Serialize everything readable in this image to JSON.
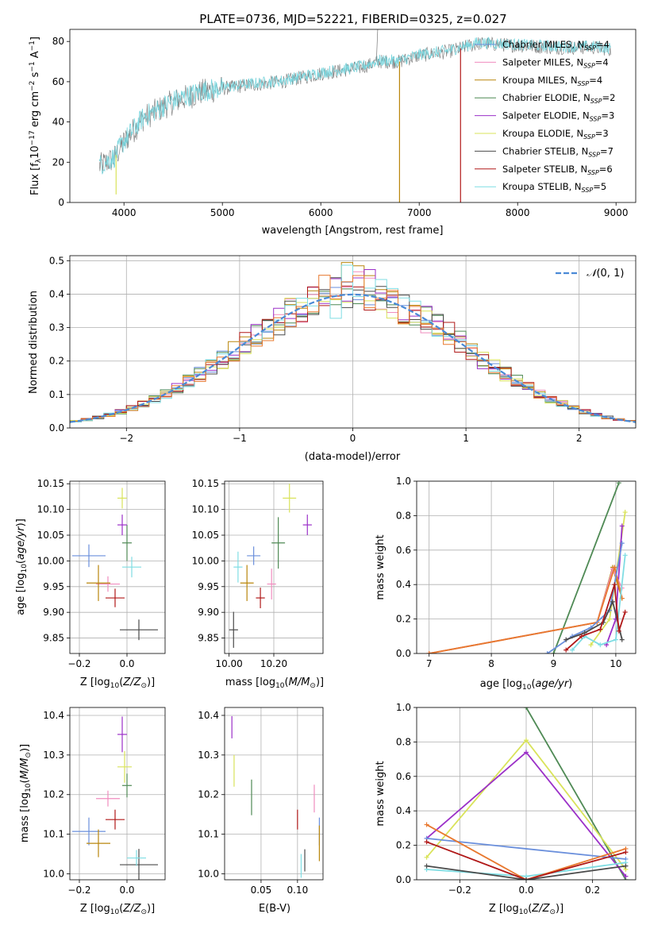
{
  "title": "PLATE=0736, MJD=52221, FIBERID=0325, z=0.027",
  "colors": {
    "Chabrier MILES": "#6a8fdc",
    "Salpeter MILES": "#f08cbe",
    "Kroupa MILES": "#b9860b",
    "Chabrier ELODIE": "#4f8a55",
    "Salpeter ELODIE": "#9b30c8",
    "Kroupa ELODIE": "#d9e35a",
    "Chabrier STELIB": "#4a4a4a",
    "Salpeter STELIB": "#b01818",
    "Kroupa STELIB": "#7fdde3",
    "orange": "#e8782e",
    "normal": "#4a8ad6",
    "spectrum_main": "#78d5dd",
    "spectrum_gray": "#777777"
  },
  "chart_data": [
    {
      "id": "spectrum",
      "type": "line",
      "xlabel": "wavelength [Angstrom, rest frame]",
      "ylabel_text": "Flux [f",
      "xlim": [
        3450,
        9200
      ],
      "ylim": [
        0,
        86
      ],
      "xticks": [
        4000,
        5000,
        6000,
        7000,
        8000,
        9000
      ],
      "yticks": [
        0,
        20,
        40,
        60,
        80
      ],
      "legend": [
        {
          "label": "Chabrier MILES, N",
          "n": "4"
        },
        {
          "label": "Salpeter MILES, N",
          "n": "4"
        },
        {
          "label": "Kroupa MILES, N",
          "n": "4"
        },
        {
          "label": "Chabrier ELODIE, N",
          "n": "2"
        },
        {
          "label": "Salpeter ELODIE, N",
          "n": "3"
        },
        {
          "label": "Kroupa ELODIE, N",
          "n": "3"
        },
        {
          "label": "Chabrier STELIB, N",
          "n": "7"
        },
        {
          "label": "Salpeter STELIB, N",
          "n": "6"
        },
        {
          "label": "Kroupa STELIB, N",
          "n": "5"
        }
      ],
      "continuum": [
        [
          3750,
          18
        ],
        [
          3900,
          22
        ],
        [
          4000,
          30
        ],
        [
          4200,
          42
        ],
        [
          4500,
          50
        ],
        [
          4800,
          55
        ],
        [
          5200,
          58
        ],
        [
          5600,
          60
        ],
        [
          6000,
          64
        ],
        [
          6400,
          67
        ],
        [
          6600,
          70
        ],
        [
          6800,
          70
        ],
        [
          7000,
          73
        ],
        [
          7300,
          75
        ],
        [
          7600,
          79
        ],
        [
          8000,
          78
        ],
        [
          8400,
          77
        ],
        [
          8800,
          77
        ],
        [
          8950,
          76
        ]
      ],
      "drops": [
        {
          "name": "Kroupa ELODIE",
          "x": 3920,
          "ybot": 4
        },
        {
          "name": "Kroupa MILES",
          "x": 6800,
          "ybot": 0
        },
        {
          "name": "Salpeter STELIB",
          "x": 7420,
          "ybot": 0
        }
      ]
    },
    {
      "id": "residuals",
      "type": "histogram",
      "xlabel": "(data-model)/error",
      "ylabel": "Normed distribution",
      "xlim": [
        -2.5,
        2.5
      ],
      "ylim": [
        0,
        0.515
      ],
      "xticks": [
        -2,
        -1,
        0,
        1,
        2
      ],
      "yticks": [
        0.0,
        0.1,
        0.2,
        0.3,
        0.4,
        0.5
      ],
      "legend_label": "(0, 1)",
      "bin_width": 0.1
    },
    {
      "id": "age_vs_Z",
      "type": "scatter",
      "xlabel": "Z [log",
      "ylabel": "age  [log",
      "xlim": [
        -0.24,
        0.16
      ],
      "ylim": [
        9.82,
        10.155
      ],
      "xticks": [
        -0.2,
        0.0
      ],
      "yticks": [
        9.85,
        9.9,
        9.95,
        10.0,
        10.05,
        10.1,
        10.15
      ],
      "points": [
        {
          "name": "Chabrier MILES",
          "x": -0.16,
          "y": 10.01,
          "xerr": 0.07,
          "yerr": 0.022
        },
        {
          "name": "Salpeter MILES",
          "x": -0.08,
          "y": 9.955,
          "xerr": 0.05,
          "yerr": 0.015
        },
        {
          "name": "Kroupa MILES",
          "x": -0.12,
          "y": 9.957,
          "xerr": 0.05,
          "yerr": 0.035
        },
        {
          "name": "Chabrier ELODIE",
          "x": 0.0,
          "y": 10.035,
          "xerr": 0.02,
          "yerr": 0.035
        },
        {
          "name": "Salpeter ELODIE",
          "x": -0.02,
          "y": 10.07,
          "xerr": 0.02,
          "yerr": 0.02
        },
        {
          "name": "Kroupa ELODIE",
          "x": -0.02,
          "y": 10.122,
          "xerr": 0.02,
          "yerr": 0.02
        },
        {
          "name": "Chabrier STELIB",
          "x": 0.05,
          "y": 9.866,
          "xerr": 0.08,
          "yerr": 0.02
        },
        {
          "name": "Salpeter STELIB",
          "x": -0.05,
          "y": 9.928,
          "xerr": 0.04,
          "yerr": 0.018
        },
        {
          "name": "Kroupa STELIB",
          "x": 0.02,
          "y": 9.988,
          "xerr": 0.04,
          "yerr": 0.02
        }
      ]
    },
    {
      "id": "age_vs_mass",
      "type": "scatter",
      "xlabel": "mass [log",
      "ylabel": "",
      "xlim": [
        9.98,
        10.42
      ],
      "ylim": [
        9.82,
        10.155
      ],
      "xticks": [
        10.0,
        10.2
      ],
      "yticks": [
        9.85,
        9.9,
        9.95,
        10.0,
        10.05,
        10.1,
        10.15
      ],
      "points": [
        {
          "name": "Chabrier MILES",
          "x": 10.11,
          "y": 10.01,
          "xerr": 0.03,
          "yerr": 0.018
        },
        {
          "name": "Salpeter MILES",
          "x": 10.19,
          "y": 9.955,
          "xerr": 0.02,
          "yerr": 0.03
        },
        {
          "name": "Kroupa MILES",
          "x": 10.08,
          "y": 9.957,
          "xerr": 0.03,
          "yerr": 0.035
        },
        {
          "name": "Chabrier ELODIE",
          "x": 10.22,
          "y": 10.035,
          "xerr": 0.03,
          "yerr": 0.05
        },
        {
          "name": "Salpeter ELODIE",
          "x": 10.35,
          "y": 10.07,
          "xerr": 0.02,
          "yerr": 0.02
        },
        {
          "name": "Kroupa ELODIE",
          "x": 10.27,
          "y": 10.122,
          "xerr": 0.03,
          "yerr": 0.028
        },
        {
          "name": "Chabrier STELIB",
          "x": 10.02,
          "y": 9.866,
          "xerr": 0.02,
          "yerr": 0.035
        },
        {
          "name": "Salpeter STELIB",
          "x": 10.14,
          "y": 9.928,
          "xerr": 0.02,
          "yerr": 0.02
        },
        {
          "name": "Kroupa STELIB",
          "x": 10.04,
          "y": 9.988,
          "xerr": 0.02,
          "yerr": 0.03
        }
      ]
    },
    {
      "id": "mass_weight_vs_age",
      "type": "line",
      "xlabel": "age  [log",
      "ylabel": "mass weight",
      "xlim": [
        6.8,
        10.32
      ],
      "ylim": [
        0,
        1.0
      ],
      "xticks": [
        7,
        8,
        9,
        10
      ],
      "yticks": [
        0.0,
        0.2,
        0.4,
        0.6,
        0.8,
        1.0
      ],
      "series": [
        {
          "name": "Chabrier ELODIE",
          "points": [
            [
              9.0,
              0.0
            ],
            [
              10.05,
              0.99
            ]
          ]
        },
        {
          "name": "Kroupa ELODIE",
          "points": [
            [
              9.6,
              0.05
            ],
            [
              9.9,
              0.2
            ],
            [
              10.15,
              0.82
            ]
          ]
        },
        {
          "name": "Salpeter ELODIE",
          "points": [
            [
              9.85,
              0.05
            ],
            [
              10.0,
              0.2
            ],
            [
              10.1,
              0.74
            ]
          ]
        },
        {
          "name": "Kroupa MILES",
          "points": [
            [
              7.0,
              0.0
            ],
            [
              9.7,
              0.18
            ],
            [
              9.95,
              0.5
            ],
            [
              10.1,
              0.32
            ]
          ]
        },
        {
          "name": "Salpeter MILES",
          "points": [
            [
              7.0,
              0.0
            ],
            [
              9.7,
              0.18
            ],
            [
              9.95,
              0.49
            ],
            [
              10.1,
              0.38
            ]
          ]
        },
        {
          "name": "orange",
          "points": [
            [
              7.0,
              0.0
            ],
            [
              9.7,
              0.18
            ],
            [
              9.98,
              0.5
            ],
            [
              10.1,
              0.32
            ]
          ]
        },
        {
          "name": "Chabrier MILES",
          "points": [
            [
              8.9,
              0.0
            ],
            [
              9.3,
              0.1
            ],
            [
              9.6,
              0.15
            ],
            [
              9.9,
              0.25
            ],
            [
              10.1,
              0.64
            ]
          ]
        },
        {
          "name": "Kroupa STELIB",
          "points": [
            [
              9.3,
              0.02
            ],
            [
              9.5,
              0.1
            ],
            [
              9.75,
              0.05
            ],
            [
              10.0,
              0.08
            ],
            [
              10.15,
              0.57
            ]
          ]
        },
        {
          "name": "Chabrier STELIB",
          "points": [
            [
              9.2,
              0.08
            ],
            [
              9.5,
              0.12
            ],
            [
              9.8,
              0.18
            ],
            [
              9.95,
              0.3
            ],
            [
              10.1,
              0.08
            ]
          ]
        },
        {
          "name": "Salpeter STELIB",
          "points": [
            [
              9.2,
              0.02
            ],
            [
              9.45,
              0.1
            ],
            [
              9.75,
              0.14
            ],
            [
              9.98,
              0.4
            ],
            [
              10.05,
              0.13
            ],
            [
              10.15,
              0.24
            ]
          ]
        }
      ]
    },
    {
      "id": "mass_vs_Z",
      "type": "scatter",
      "xlabel": "Z [log",
      "ylabel": "mass [log",
      "xlim": [
        -0.24,
        0.16
      ],
      "ylim": [
        9.985,
        10.42
      ],
      "xticks": [
        -0.2,
        0.0
      ],
      "yticks": [
        10.0,
        10.1,
        10.2,
        10.3,
        10.4
      ],
      "points": [
        {
          "name": "Chabrier MILES",
          "x": -0.16,
          "y": 10.107,
          "xerr": 0.07,
          "yerr": 0.035
        },
        {
          "name": "Salpeter MILES",
          "x": -0.08,
          "y": 10.19,
          "xerr": 0.05,
          "yerr": 0.02
        },
        {
          "name": "Kroupa MILES",
          "x": -0.12,
          "y": 10.077,
          "xerr": 0.05,
          "yerr": 0.035
        },
        {
          "name": "Chabrier ELODIE",
          "x": 0.0,
          "y": 10.223,
          "xerr": 0.02,
          "yerr": 0.03
        },
        {
          "name": "Salpeter ELODIE",
          "x": -0.02,
          "y": 10.352,
          "xerr": 0.02,
          "yerr": 0.045
        },
        {
          "name": "Kroupa ELODIE",
          "x": -0.01,
          "y": 10.27,
          "xerr": 0.03,
          "yerr": 0.04
        },
        {
          "name": "Chabrier STELIB",
          "x": 0.05,
          "y": 10.023,
          "xerr": 0.08,
          "yerr": 0.04
        },
        {
          "name": "Salpeter STELIB",
          "x": -0.05,
          "y": 10.137,
          "xerr": 0.04,
          "yerr": 0.025
        },
        {
          "name": "Kroupa STELIB",
          "x": 0.04,
          "y": 10.04,
          "xerr": 0.04,
          "yerr": 0.02
        }
      ]
    },
    {
      "id": "mass_vs_EBV",
      "type": "scatter",
      "xlabel": "E(B-V)",
      "ylabel": "",
      "xlim": [
        0.0,
        0.135
      ],
      "ylim": [
        9.985,
        10.42
      ],
      "xticks": [
        0.05,
        0.1
      ],
      "yticks": [
        10.0,
        10.1,
        10.2,
        10.3,
        10.4
      ],
      "points": [
        {
          "name": "Chabrier MILES",
          "x": 0.13,
          "y": 10.107,
          "xerr": 0,
          "yerr": 0.035
        },
        {
          "name": "Salpeter MILES",
          "x": 0.123,
          "y": 10.19,
          "xerr": 0,
          "yerr": 0.035
        },
        {
          "name": "Kroupa MILES",
          "x": 0.13,
          "y": 10.077,
          "xerr": 0,
          "yerr": 0.045
        },
        {
          "name": "Chabrier ELODIE",
          "x": 0.037,
          "y": 10.193,
          "xerr": 0,
          "yerr": 0.045
        },
        {
          "name": "Salpeter ELODIE",
          "x": 0.01,
          "y": 10.37,
          "xerr": 0,
          "yerr": 0.028
        },
        {
          "name": "Kroupa ELODIE",
          "x": 0.013,
          "y": 10.26,
          "xerr": 0,
          "yerr": 0.04
        },
        {
          "name": "Chabrier STELIB",
          "x": 0.11,
          "y": 10.034,
          "xerr": 0,
          "yerr": 0.028
        },
        {
          "name": "Salpeter STELIB",
          "x": 0.1,
          "y": 10.137,
          "xerr": 0,
          "yerr": 0.025
        },
        {
          "name": "Kroupa STELIB",
          "x": 0.105,
          "y": 10.02,
          "xerr": 0,
          "yerr": 0.03
        }
      ]
    },
    {
      "id": "mass_weight_vs_Z",
      "type": "line",
      "xlabel": "Z [log",
      "ylabel": "mass weight",
      "xlim": [
        -0.33,
        0.33
      ],
      "ylim": [
        0,
        1.0
      ],
      "xticks": [
        -0.2,
        0.0,
        0.2
      ],
      "yticks": [
        0.0,
        0.2,
        0.4,
        0.6,
        0.8,
        1.0
      ],
      "series": [
        {
          "name": "Chabrier ELODIE",
          "points": [
            [
              0.0,
              1.0
            ],
            [
              0.3,
              0.0
            ]
          ]
        },
        {
          "name": "Kroupa ELODIE",
          "points": [
            [
              -0.3,
              0.13
            ],
            [
              0.0,
              0.81
            ],
            [
              0.3,
              0.06
            ]
          ]
        },
        {
          "name": "Salpeter ELODIE",
          "points": [
            [
              -0.3,
              0.24
            ],
            [
              0.0,
              0.74
            ],
            [
              0.3,
              0.02
            ]
          ]
        },
        {
          "name": "Chabrier MILES",
          "points": [
            [
              -0.3,
              0.24
            ],
            [
              0.3,
              0.12
            ]
          ]
        },
        {
          "name": "Kroupa STELIB",
          "points": [
            [
              -0.3,
              0.06
            ],
            [
              0.0,
              0.02
            ],
            [
              0.3,
              0.1
            ]
          ]
        },
        {
          "name": "orange",
          "points": [
            [
              -0.3,
              0.32
            ],
            [
              0.0,
              0.0
            ],
            [
              0.3,
              0.18
            ]
          ]
        },
        {
          "name": "Salpeter STELIB",
          "points": [
            [
              -0.3,
              0.22
            ],
            [
              0.0,
              0.0
            ],
            [
              0.3,
              0.16
            ]
          ]
        },
        {
          "name": "Chabrier STELIB",
          "points": [
            [
              -0.3,
              0.08
            ],
            [
              0.0,
              0.0
            ],
            [
              0.3,
              0.08
            ]
          ]
        }
      ]
    }
  ]
}
